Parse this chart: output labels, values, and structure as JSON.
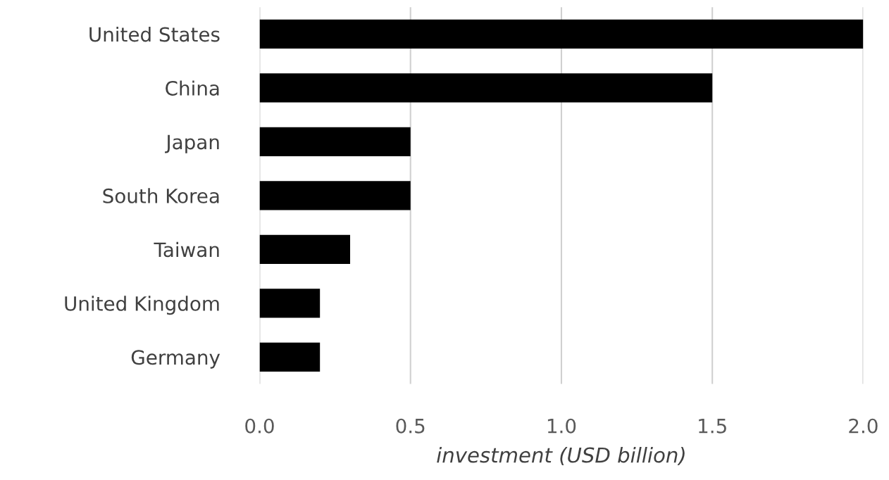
{
  "chart_data": {
    "type": "bar",
    "orientation": "horizontal",
    "xlabel": "investment (USD billion)",
    "categories": [
      "United States",
      "China",
      "Japan",
      "South Korea",
      "Taiwan",
      "United Kingdom",
      "Germany"
    ],
    "values": [
      2.0,
      1.5,
      0.5,
      0.5,
      0.3,
      0.2,
      0.2
    ],
    "color": "#000000",
    "xlim": [
      0,
      2.0
    ],
    "xticks": [
      {
        "value": 0,
        "label": "0.0"
      },
      0.5,
      {
        "value": 1,
        "label": "1.0"
      },
      1.5,
      {
        "value": 2,
        "label": "2.0"
      }
    ],
    "grid": "x",
    "legend": false
  }
}
